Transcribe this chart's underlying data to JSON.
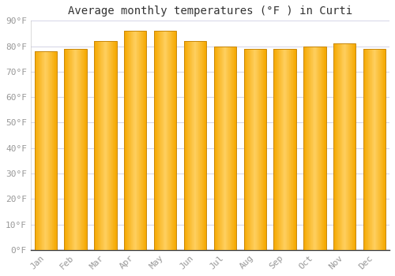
{
  "title": "Average monthly temperatures (°F ) in Curti",
  "months": [
    "Jan",
    "Feb",
    "Mar",
    "Apr",
    "May",
    "Jun",
    "Jul",
    "Aug",
    "Sep",
    "Oct",
    "Nov",
    "Dec"
  ],
  "values": [
    78,
    79,
    82,
    86,
    86,
    82,
    80,
    79,
    79,
    80,
    81,
    79
  ],
  "bar_color_left": "#F5A800",
  "bar_color_center": "#FFD060",
  "bar_color_right": "#F5A800",
  "bar_edge_color": "#C8870A",
  "background_color": "#FFFFFF",
  "plot_bg_color": "#FFFFFF",
  "grid_color": "#D8D8E8",
  "ylim": [
    0,
    90
  ],
  "yticks": [
    0,
    10,
    20,
    30,
    40,
    50,
    60,
    70,
    80,
    90
  ],
  "title_fontsize": 10,
  "tick_fontsize": 8,
  "font_color": "#999999",
  "title_color": "#333333",
  "bar_width": 0.75
}
